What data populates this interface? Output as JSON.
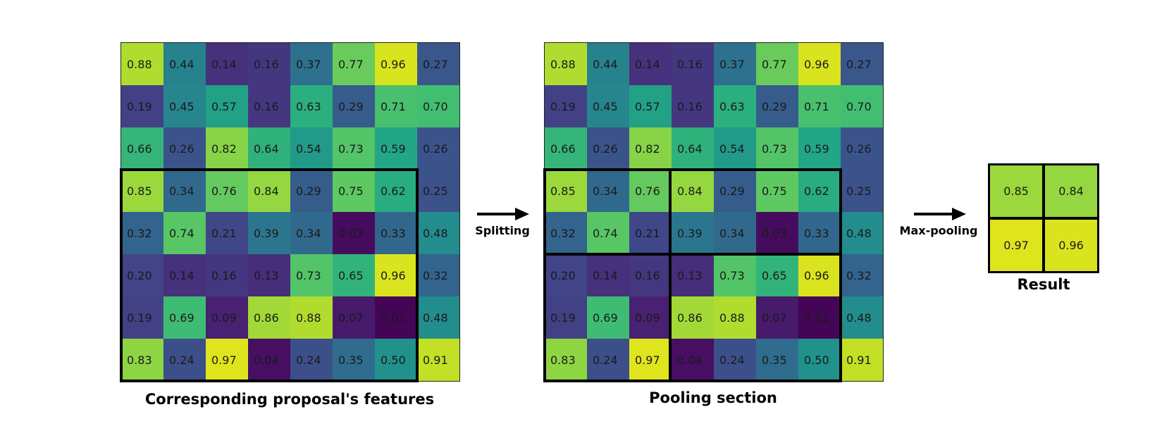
{
  "feature_map": {
    "values": [
      [
        "0.88",
        "0.44",
        "0.14",
        "0.16",
        "0.37",
        "0.77",
        "0.96",
        "0.27"
      ],
      [
        "0.19",
        "0.45",
        "0.57",
        "0.16",
        "0.63",
        "0.29",
        "0.71",
        "0.70"
      ],
      [
        "0.66",
        "0.26",
        "0.82",
        "0.64",
        "0.54",
        "0.73",
        "0.59",
        "0.26"
      ],
      [
        "0.85",
        "0.34",
        "0.76",
        "0.84",
        "0.29",
        "0.75",
        "0.62",
        "0.25"
      ],
      [
        "0.32",
        "0.74",
        "0.21",
        "0.39",
        "0.34",
        "0.03",
        "0.33",
        "0.48"
      ],
      [
        "0.20",
        "0.14",
        "0.16",
        "0.13",
        "0.73",
        "0.65",
        "0.96",
        "0.32"
      ],
      [
        "0.19",
        "0.69",
        "0.09",
        "0.86",
        "0.88",
        "0.07",
        "0.01",
        "0.48"
      ],
      [
        "0.83",
        "0.24",
        "0.97",
        "0.04",
        "0.24",
        "0.35",
        "0.50",
        "0.91"
      ]
    ]
  },
  "panels": {
    "left_caption": "Corresponding proposal's features",
    "middle_caption": "Pooling section",
    "result_caption": "Result"
  },
  "arrows": {
    "splitting": "Splitting",
    "max_pooling": "Max-pooling"
  },
  "result": {
    "values": [
      [
        "0.85",
        "0.84"
      ],
      [
        "0.97",
        "0.96"
      ]
    ]
  },
  "colormap": "viridis"
}
